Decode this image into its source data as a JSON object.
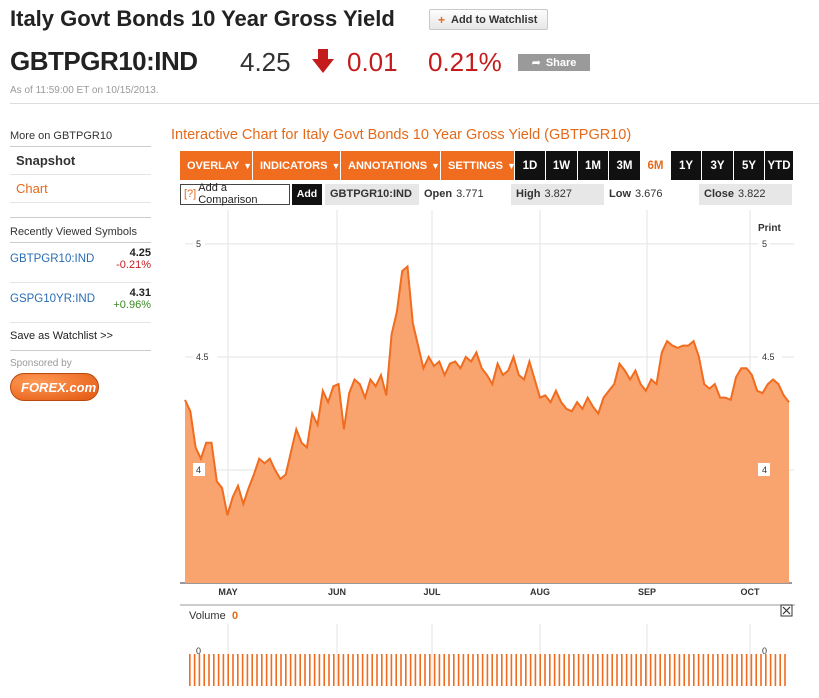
{
  "header": {
    "title": "Italy Govt Bonds 10 Year Gross Yield",
    "watchlist_label": "Add to Watchlist",
    "ticker": "GBTPGR10:IND",
    "price": "4.25",
    "change": "0.01",
    "change_pct": "0.21%",
    "share_label": "Share",
    "as_of": "As of 11:59:00 ET on 10/15/2013.",
    "colors": {
      "down": "#c41c1c",
      "accent": "#e36a1b"
    }
  },
  "sidebar": {
    "more_label": "More on GBTPGR10",
    "nav": [
      {
        "label": "Snapshot"
      },
      {
        "label": "Chart"
      }
    ],
    "recent_title": "Recently Viewed Symbols",
    "recent": [
      {
        "symbol": "GBTPGR10:IND",
        "value": "4.25",
        "change": "-0.21%"
      },
      {
        "symbol": "GSPG10YR:IND",
        "value": "4.31",
        "change": "+0.96%"
      }
    ],
    "save_watchlist": "Save as Watchlist >>",
    "sponsored": "Sponsored by",
    "sponsor_logo": "FOREX.com"
  },
  "chart_panel": {
    "title": "Interactive Chart for Italy Govt Bonds 10 Year Gross Yield (GBTPGR10)",
    "menus": [
      {
        "label": "OVERLAY"
      },
      {
        "label": "INDICATORS"
      },
      {
        "label": "ANNOTATIONS"
      },
      {
        "label": "SETTINGS"
      }
    ],
    "ranges": [
      {
        "label": "1D"
      },
      {
        "label": "1W"
      },
      {
        "label": "1M"
      },
      {
        "label": "3M"
      },
      {
        "label": "6M"
      },
      {
        "label": "1Y"
      },
      {
        "label": "3Y"
      },
      {
        "label": "5Y"
      },
      {
        "label": "YTD"
      }
    ],
    "selected_range": "6M",
    "compare_placeholder": "Add a Comparison",
    "compare_help": "[?]",
    "add_label": "Add",
    "symbol": "GBTPGR10:IND",
    "open_label": "Open",
    "open": "3.771",
    "high_label": "High",
    "high": "3.827",
    "low_label": "Low",
    "low": "3.676",
    "close_label": "Close",
    "close": "3.822",
    "print_label": "Print",
    "volume_label": "Volume",
    "volume_value": "0"
  },
  "chart_data": {
    "type": "area",
    "x_tick_labels": [
      "MAY",
      "JUN",
      "JUL",
      "AUG",
      "SEP",
      "OCT"
    ],
    "y_tick_labels": [
      "4",
      "4.5",
      "5"
    ],
    "ylim": [
      3.5,
      5.15
    ],
    "grid": true,
    "values": [
      4.31,
      4.26,
      4.1,
      4.05,
      4.12,
      4.12,
      3.95,
      3.92,
      3.8,
      3.88,
      3.93,
      3.85,
      3.92,
      3.98,
      4.05,
      4.03,
      4.05,
      4.0,
      3.96,
      3.98,
      4.08,
      4.18,
      4.12,
      4.1,
      4.25,
      4.2,
      4.35,
      4.3,
      4.37,
      4.38,
      4.18,
      4.34,
      4.4,
      4.38,
      4.32,
      4.4,
      4.37,
      4.42,
      4.33,
      4.6,
      4.7,
      4.88,
      4.9,
      4.65,
      4.55,
      4.45,
      4.5,
      4.46,
      4.48,
      4.42,
      4.47,
      4.48,
      4.45,
      4.5,
      4.48,
      4.52,
      4.45,
      4.42,
      4.38,
      4.47,
      4.42,
      4.44,
      4.5,
      4.42,
      4.4,
      4.48,
      4.4,
      4.32,
      4.33,
      4.3,
      4.35,
      4.3,
      4.27,
      4.26,
      4.3,
      4.27,
      4.32,
      4.28,
      4.25,
      4.32,
      4.35,
      4.38,
      4.47,
      4.44,
      4.4,
      4.44,
      4.38,
      4.35,
      4.4,
      4.38,
      4.52,
      4.57,
      4.55,
      4.54,
      4.55,
      4.55,
      4.57,
      4.5,
      4.38,
      4.36,
      4.38,
      4.32,
      4.32,
      4.31,
      4.41,
      4.45,
      4.45,
      4.42,
      4.35,
      4.34,
      4.38,
      4.4,
      4.38,
      4.33,
      4.3
    ],
    "volume_series": {
      "name": "Volume",
      "values": [
        0
      ]
    },
    "colors": {
      "line": "#f06c1f",
      "fill": "#f9a36f",
      "volume": "#f06c1f"
    }
  }
}
